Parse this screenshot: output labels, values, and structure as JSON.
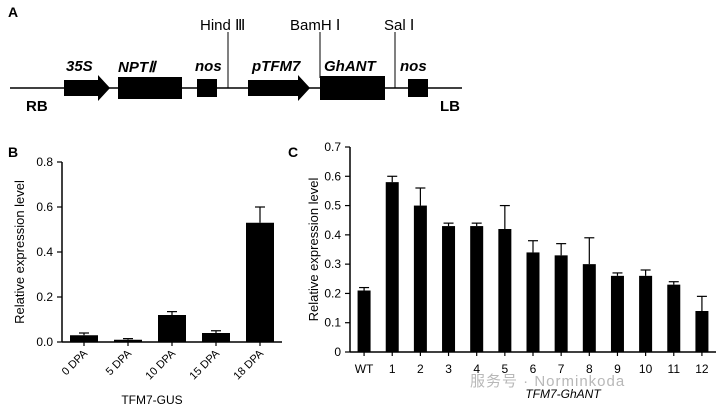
{
  "panel_a": {
    "letter": "A",
    "labels": {
      "p35s": "35S",
      "npt": "NPTⅡ",
      "nos1": "nos",
      "hind": "Hind Ⅲ",
      "ptfm7": "pTFM7",
      "bamh": "BamH Ⅰ",
      "ghant": "GhANT",
      "sal": "Sal Ⅰ",
      "nos2": "nos",
      "rb": "RB",
      "lb": "LB"
    }
  },
  "chart_data": [
    {
      "panel": "B",
      "type": "bar",
      "xlabel": "TFM7-GUS",
      "ylabel": "Relative expression level",
      "ylim": [
        0,
        0.8
      ],
      "yticks": [
        "0.0",
        "0.2",
        "0.4",
        "0.6",
        "0.8"
      ],
      "categories": [
        "0 DPA",
        "5 DPA",
        "10 DPA",
        "15 DPA",
        "18 DPA"
      ],
      "values": [
        0.03,
        0.01,
        0.12,
        0.04,
        0.53
      ],
      "errors": [
        0.01,
        0.005,
        0.015,
        0.01,
        0.07
      ]
    },
    {
      "panel": "C",
      "type": "bar",
      "xlabel": "TFM7-GhANT",
      "ylabel": "Relative expression level",
      "ylim": [
        0,
        0.7
      ],
      "yticks": [
        "0",
        "0.1",
        "0.2",
        "0.3",
        "0.4",
        "0.5",
        "0.6",
        "0.7"
      ],
      "categories": [
        "WT",
        "1",
        "2",
        "3",
        "4",
        "5",
        "6",
        "7",
        "8",
        "9",
        "10",
        "11",
        "12"
      ],
      "values": [
        0.21,
        0.58,
        0.5,
        0.43,
        0.43,
        0.42,
        0.34,
        0.33,
        0.3,
        0.26,
        0.26,
        0.23,
        0.14
      ],
      "errors": [
        0.01,
        0.02,
        0.06,
        0.01,
        0.01,
        0.08,
        0.04,
        0.04,
        0.09,
        0.01,
        0.02,
        0.01,
        0.05
      ]
    }
  ],
  "watermark": "服务号 · Norminkoda"
}
